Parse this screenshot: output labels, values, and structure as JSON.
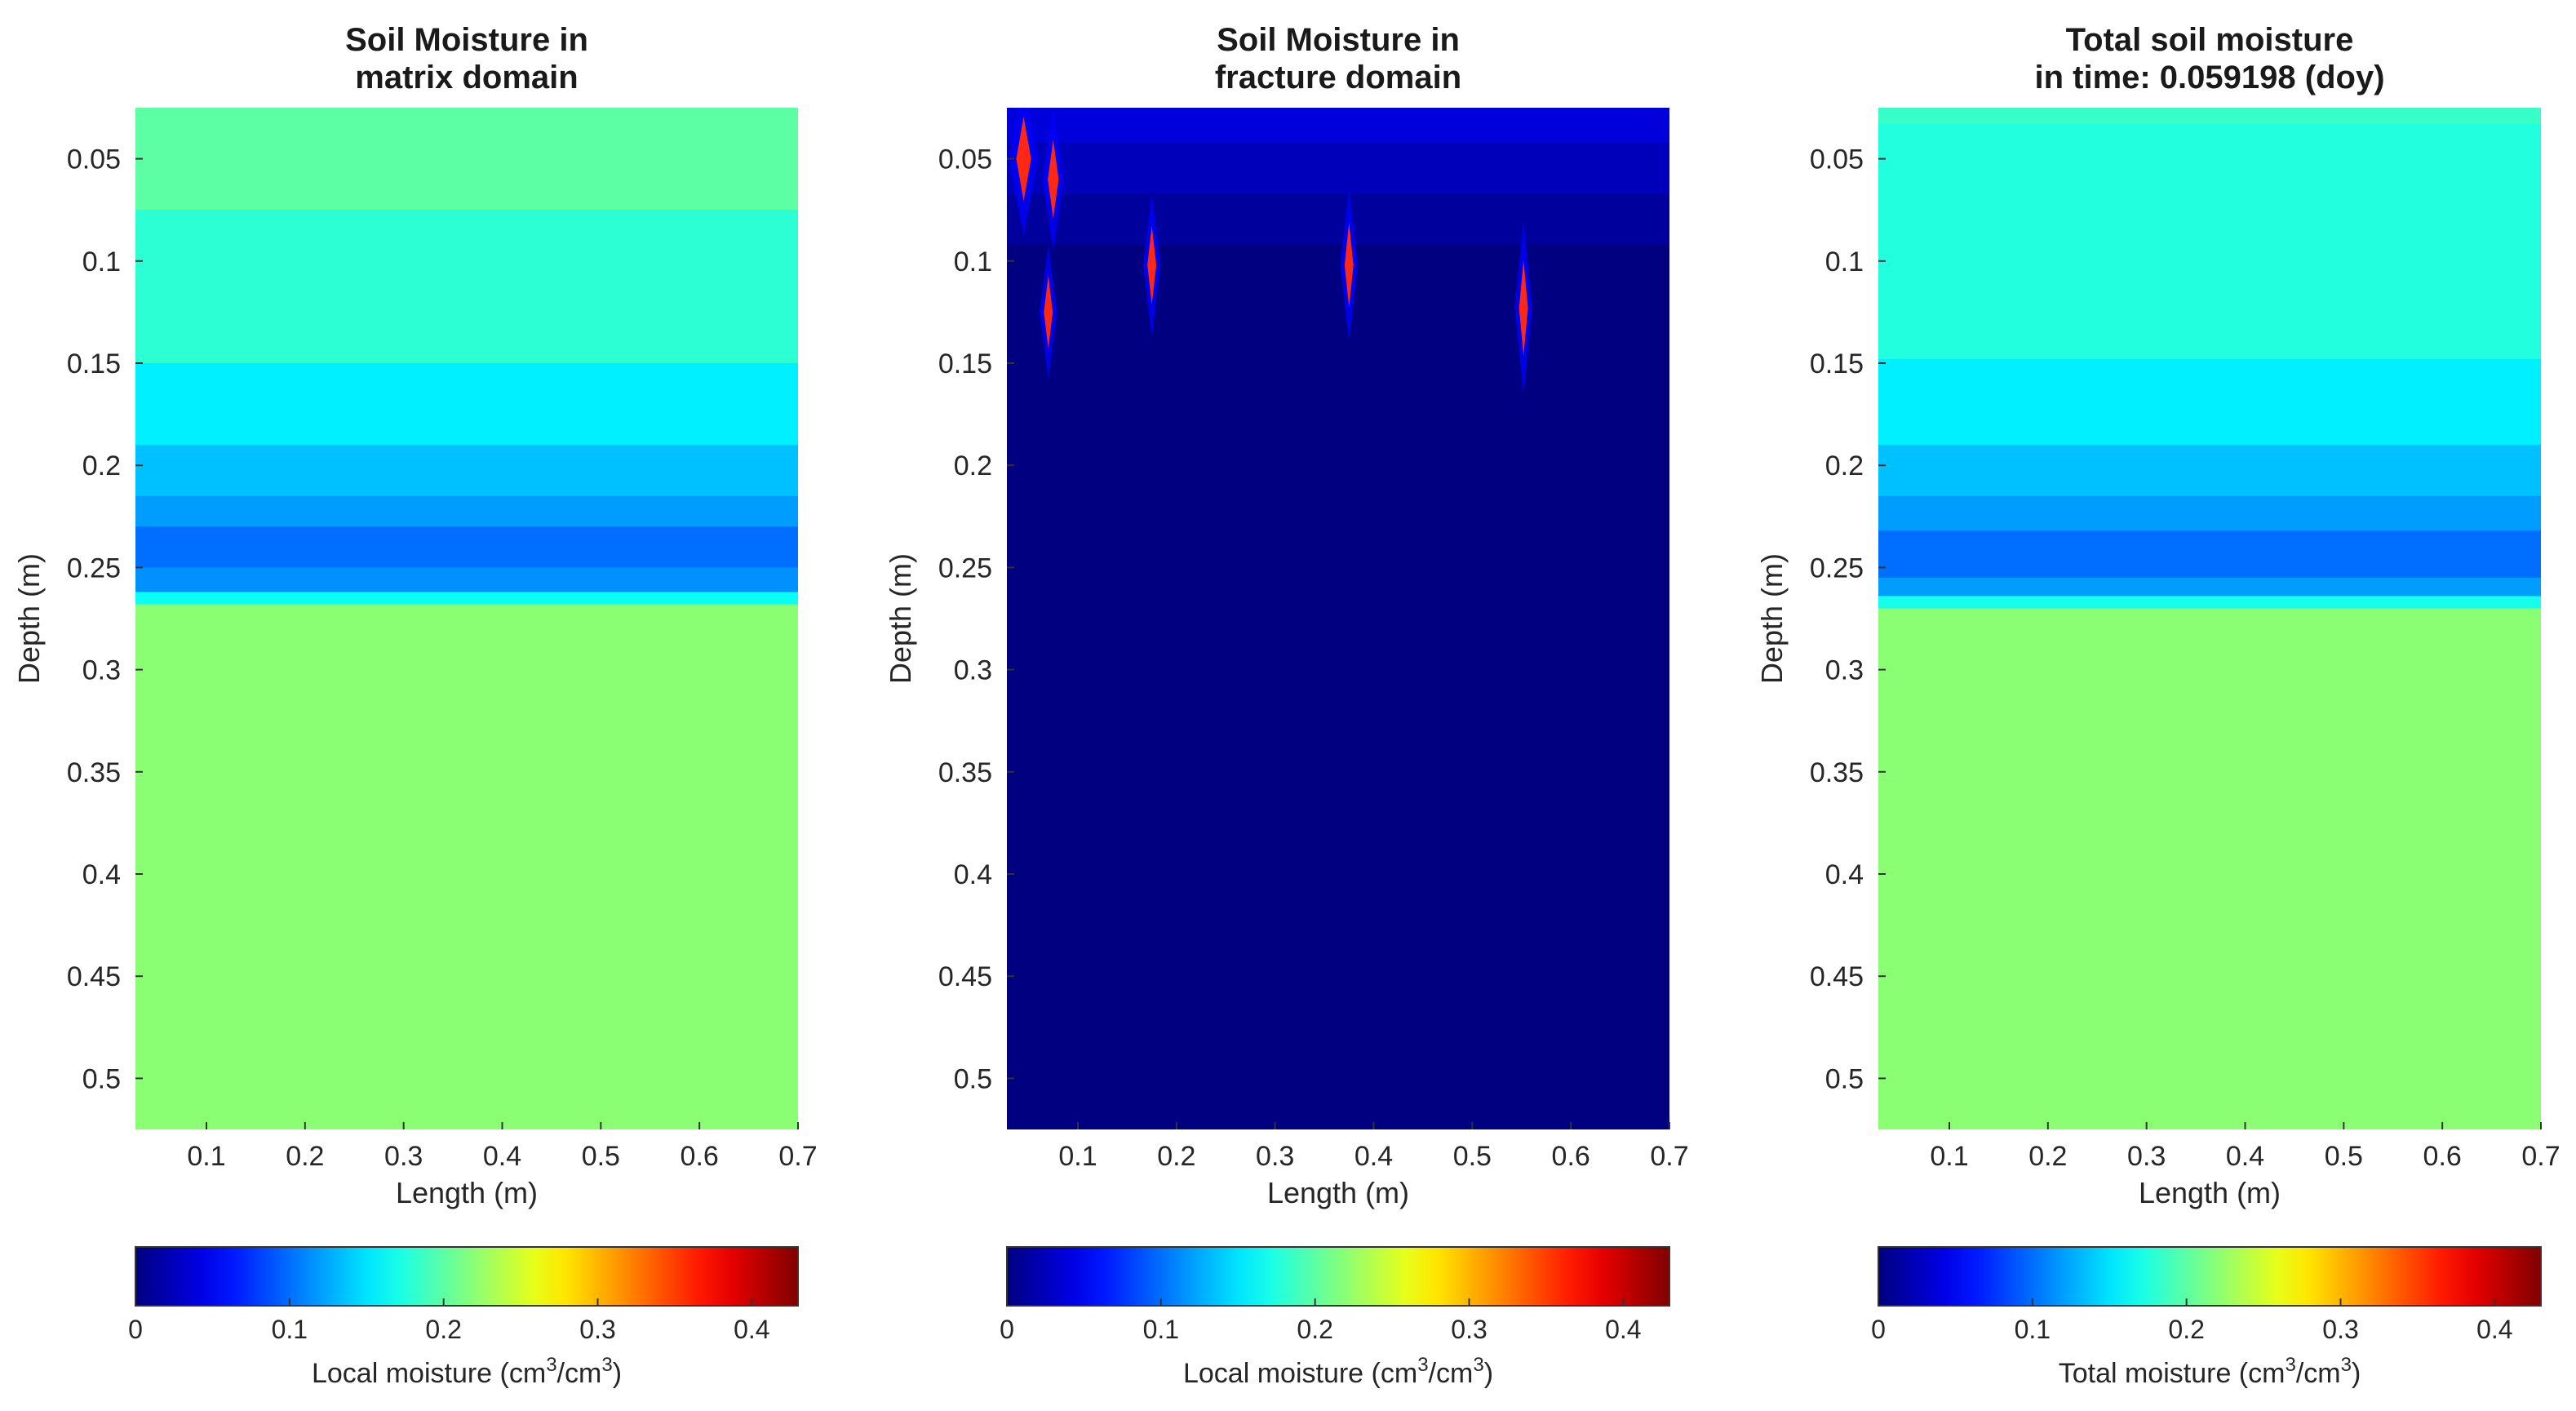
{
  "chart_data": [
    {
      "type": "heatmap",
      "title": [
        "Soil Moisture in",
        "matrix domain"
      ],
      "xlabel": "Length (m)",
      "ylabel": "Depth (m)",
      "xlim": [
        0.028,
        0.7
      ],
      "ylim": [
        0.025,
        0.525
      ],
      "y_reversed": true,
      "xticks": [
        0.1,
        0.2,
        0.3,
        0.4,
        0.5,
        0.6,
        0.7
      ],
      "yticks": [
        0.05,
        0.1,
        0.15,
        0.2,
        0.25,
        0.3,
        0.35,
        0.4,
        0.45,
        0.5
      ],
      "layers": [
        {
          "y0": 0.025,
          "y1": 0.075,
          "value": 0.2
        },
        {
          "y0": 0.075,
          "y1": 0.15,
          "value": 0.18
        },
        {
          "y0": 0.15,
          "y1": 0.19,
          "value": 0.155
        },
        {
          "y0": 0.19,
          "y1": 0.215,
          "value": 0.135
        },
        {
          "y0": 0.215,
          "y1": 0.23,
          "value": 0.12
        },
        {
          "y0": 0.23,
          "y1": 0.25,
          "value": 0.1
        },
        {
          "y0": 0.25,
          "y1": 0.262,
          "value": 0.115
        },
        {
          "y0": 0.262,
          "y1": 0.268,
          "value": 0.165
        },
        {
          "y0": 0.268,
          "y1": 0.525,
          "value": 0.22
        }
      ],
      "spots": [],
      "colorbar": {
        "label_prefix": "Local moisture (cm",
        "exp1": "3",
        "label_mid": "/cm",
        "exp2": "3",
        "label_suffix": ")",
        "ticks": [
          0,
          0.1,
          0.2,
          0.3,
          0.4
        ],
        "range": [
          0,
          0.43
        ],
        "colormap": "jet"
      }
    },
    {
      "type": "heatmap",
      "title": [
        "Soil Moisture in",
        "fracture domain"
      ],
      "xlabel": "Length (m)",
      "ylabel": "Depth (m)",
      "xlim": [
        0.028,
        0.7
      ],
      "ylim": [
        0.025,
        0.525
      ],
      "y_reversed": true,
      "xticks": [
        0.1,
        0.2,
        0.3,
        0.4,
        0.5,
        0.6,
        0.7
      ],
      "yticks": [
        0.05,
        0.1,
        0.15,
        0.2,
        0.25,
        0.3,
        0.35,
        0.4,
        0.45,
        0.5
      ],
      "layers": [
        {
          "y0": 0.025,
          "y1": 0.042,
          "value": 0.038
        },
        {
          "y0": 0.042,
          "y1": 0.067,
          "value": 0.025
        },
        {
          "y0": 0.067,
          "y1": 0.092,
          "value": 0.012
        },
        {
          "y0": 0.092,
          "y1": 0.525,
          "value": 0.0
        }
      ],
      "spots": [
        {
          "x": 0.045,
          "y": 0.05,
          "w": 0.03,
          "h": 0.075,
          "value": 0.05
        },
        {
          "x": 0.075,
          "y": 0.06,
          "w": 0.022,
          "h": 0.07,
          "value": 0.05
        },
        {
          "x": 0.07,
          "y": 0.125,
          "w": 0.018,
          "h": 0.065,
          "value": 0.05
        },
        {
          "x": 0.175,
          "y": 0.102,
          "w": 0.018,
          "h": 0.07,
          "value": 0.05
        },
        {
          "x": 0.375,
          "y": 0.102,
          "w": 0.018,
          "h": 0.075,
          "value": 0.05
        },
        {
          "x": 0.552,
          "y": 0.123,
          "w": 0.018,
          "h": 0.085,
          "value": 0.05
        }
      ],
      "colorbar": {
        "label_prefix": "Local moisture (cm",
        "exp1": "3",
        "label_mid": "/cm",
        "exp2": "3",
        "label_suffix": ")",
        "ticks": [
          0,
          0.1,
          0.2,
          0.3,
          0.4
        ],
        "range": [
          0,
          0.43
        ],
        "colormap": "jet"
      }
    },
    {
      "type": "heatmap",
      "title": [
        "Total soil moisture",
        "in time: 0.059198 (doy)"
      ],
      "xlabel": "Length (m)",
      "ylabel": "Depth (m)",
      "xlim": [
        0.028,
        0.7
      ],
      "ylim": [
        0.025,
        0.525
      ],
      "y_reversed": true,
      "xticks": [
        0.1,
        0.2,
        0.3,
        0.4,
        0.5,
        0.6,
        0.7
      ],
      "yticks": [
        0.05,
        0.1,
        0.15,
        0.2,
        0.25,
        0.3,
        0.35,
        0.4,
        0.45,
        0.5
      ],
      "layers": [
        {
          "y0": 0.025,
          "y1": 0.033,
          "value": 0.185
        },
        {
          "y0": 0.033,
          "y1": 0.148,
          "value": 0.175
        },
        {
          "y0": 0.148,
          "y1": 0.19,
          "value": 0.155
        },
        {
          "y0": 0.19,
          "y1": 0.215,
          "value": 0.135
        },
        {
          "y0": 0.215,
          "y1": 0.232,
          "value": 0.12
        },
        {
          "y0": 0.232,
          "y1": 0.255,
          "value": 0.1
        },
        {
          "y0": 0.255,
          "y1": 0.264,
          "value": 0.12
        },
        {
          "y0": 0.264,
          "y1": 0.27,
          "value": 0.17
        },
        {
          "y0": 0.27,
          "y1": 0.525,
          "value": 0.22
        }
      ],
      "spots": [],
      "colorbar": {
        "label_prefix": "Total moisture (cm",
        "exp1": "3",
        "label_mid": "/cm",
        "exp2": "3",
        "label_suffix": ")",
        "ticks": [
          0,
          0.1,
          0.2,
          0.3,
          0.4
        ],
        "range": [
          0,
          0.43
        ],
        "colormap": "jet"
      }
    }
  ]
}
